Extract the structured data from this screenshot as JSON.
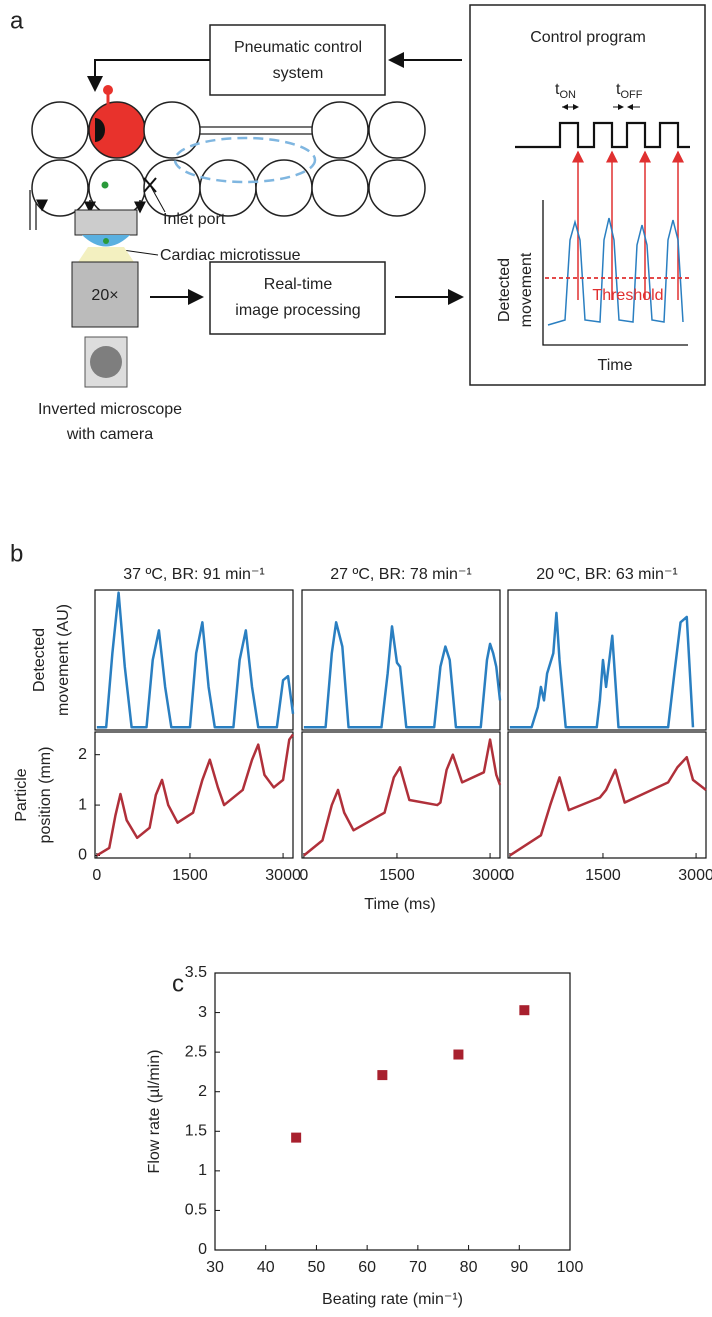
{
  "panel_a": {
    "label": "a",
    "pneumatic_control": [
      "Pneumatic control",
      "system"
    ],
    "control_program": "Control program",
    "t_on": [
      "t",
      "ON"
    ],
    "t_off": [
      "t",
      "OFF"
    ],
    "inlet_port": "Inlet port",
    "cardiac_microtissue": "Cardiac microtissue",
    "objective": "20×",
    "image_processing": [
      "Real-time",
      "image processing"
    ],
    "microscope": [
      "Inverted microscope",
      "with camera"
    ],
    "detected_movement": [
      "Detected",
      "movement"
    ],
    "threshold": "Threshold",
    "time": "Time"
  },
  "panel_b": {
    "label": "b",
    "upper_ylabel": [
      "Detected",
      "movement (AU)"
    ],
    "lower_ylabel": [
      "Particle",
      "position (mm)"
    ],
    "xlabel": "Time (ms)"
  },
  "panel_c": {
    "label": "c"
  },
  "chart_data": [
    {
      "type": "line",
      "title": "37 ºC, BR: 91 min⁻¹",
      "x": [
        0,
        150,
        250,
        350,
        450,
        560,
        800,
        900,
        1000,
        1100,
        1200,
        1500,
        1600,
        1700,
        1800,
        1900,
        2200,
        2300,
        2400,
        2500,
        2600,
        2900,
        3000,
        3080,
        3160
      ],
      "series": [
        {
          "color": "#2a7fc1",
          "values": [
            0,
            0,
            0.55,
            1.0,
            0.45,
            0,
            0,
            0.5,
            0.72,
            0.3,
            0,
            0,
            0.55,
            0.78,
            0.3,
            0,
            0,
            0.5,
            0.72,
            0.3,
            0,
            0,
            0.35,
            0.38,
            0.1
          ]
        }
      ],
      "xlim": [
        -30,
        3160
      ],
      "ylim": [
        -0.02,
        1.02
      ]
    },
    {
      "type": "line",
      "title": "27 ºC, BR: 78 min⁻¹",
      "x": [
        0,
        350,
        450,
        520,
        620,
        720,
        1250,
        1350,
        1420,
        1500,
        1550,
        1650,
        2100,
        2200,
        2280,
        2350,
        2450,
        2850,
        2950,
        3000,
        3050,
        3100,
        3160
      ],
      "series": [
        {
          "color": "#2a7fc1",
          "values": [
            0,
            0,
            0.55,
            0.78,
            0.6,
            0,
            0,
            0.4,
            0.75,
            0.48,
            0.45,
            0,
            0,
            0.45,
            0.6,
            0.5,
            0,
            0,
            0.5,
            0.62,
            0.55,
            0.45,
            0.2
          ]
        }
      ],
      "xlim": [
        -30,
        3160
      ],
      "ylim": [
        -0.02,
        1.02
      ]
    },
    {
      "type": "line",
      "title": "20 ºC, BR: 63 min⁻¹",
      "x": [
        0,
        350,
        450,
        500,
        550,
        600,
        700,
        750,
        800,
        900,
        1400,
        1450,
        1500,
        1550,
        1650,
        1750,
        2550,
        2650,
        2750,
        2850,
        2950
      ],
      "series": [
        {
          "color": "#2a7fc1",
          "values": [
            0,
            0,
            0.15,
            0.3,
            0.2,
            0.4,
            0.55,
            0.85,
            0.5,
            0,
            0,
            0.2,
            0.5,
            0.3,
            0.68,
            0,
            0,
            0.4,
            0.78,
            0.82,
            0
          ]
        }
      ],
      "xlim": [
        -30,
        3160
      ],
      "ylim": [
        -0.02,
        1.02
      ]
    },
    {
      "type": "line",
      "x": [
        0,
        200,
        300,
        380,
        480,
        650,
        850,
        950,
        1050,
        1150,
        1300,
        1550,
        1700,
        1820,
        1950,
        2050,
        2350,
        2500,
        2600,
        2700,
        2850,
        3000,
        3100,
        3160
      ],
      "series": [
        {
          "color": "#b0303a",
          "values": [
            0,
            0.15,
            0.8,
            1.22,
            0.7,
            0.35,
            0.55,
            1.2,
            1.5,
            1.0,
            0.65,
            0.85,
            1.5,
            1.9,
            1.35,
            1.0,
            1.3,
            1.9,
            2.2,
            1.6,
            1.35,
            1.5,
            2.3,
            2.4
          ]
        }
      ],
      "xlim": [
        -30,
        3160
      ],
      "ylim": [
        -0.05,
        2.45
      ],
      "xticks": [
        0,
        1500,
        3000
      ],
      "yticks": [
        0,
        1,
        2
      ]
    },
    {
      "type": "line",
      "x": [
        0,
        300,
        450,
        550,
        650,
        800,
        1300,
        1450,
        1550,
        1700,
        2150,
        2200,
        2300,
        2400,
        2550,
        2900,
        3000,
        3100,
        3160
      ],
      "series": [
        {
          "color": "#b0303a",
          "values": [
            0,
            0.3,
            1.0,
            1.3,
            0.85,
            0.5,
            0.85,
            1.55,
            1.75,
            1.1,
            1.0,
            1.05,
            1.7,
            2.0,
            1.45,
            1.65,
            2.3,
            1.6,
            1.4
          ]
        }
      ],
      "xlim": [
        -30,
        3160
      ],
      "ylim": [
        -0.05,
        2.45
      ],
      "xticks": [
        0,
        1500,
        3000
      ]
    },
    {
      "type": "line",
      "x": [
        0,
        500,
        650,
        800,
        950,
        1450,
        1550,
        1700,
        1850,
        2550,
        2700,
        2850,
        2950,
        3160
      ],
      "series": [
        {
          "color": "#b0303a",
          "values": [
            0,
            0.4,
            1.0,
            1.55,
            0.9,
            1.15,
            1.3,
            1.7,
            1.05,
            1.45,
            1.75,
            1.95,
            1.5,
            1.3
          ]
        }
      ],
      "xlim": [
        -30,
        3160
      ],
      "ylim": [
        -0.05,
        2.45
      ],
      "xticks": [
        0,
        1500,
        3000
      ]
    },
    {
      "type": "scatter",
      "x": [
        46,
        63,
        78,
        91
      ],
      "series": [
        {
          "color": "#a8202e",
          "values": [
            1.42,
            2.21,
            2.47,
            3.03
          ]
        }
      ],
      "xlim": [
        30,
        100
      ],
      "ylim": [
        0,
        3.5
      ],
      "xticks": [
        30,
        40,
        50,
        60,
        70,
        80,
        90,
        100
      ],
      "yticks": [
        0,
        0.5,
        1,
        1.5,
        2,
        2.5,
        3,
        3.5
      ],
      "xlabel": "Beating rate (min⁻¹)",
      "ylabel": "Flow rate (µl/min)"
    }
  ]
}
